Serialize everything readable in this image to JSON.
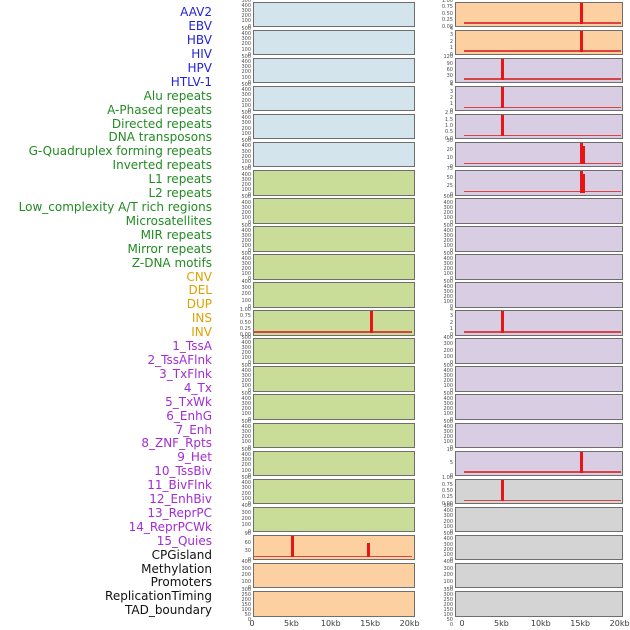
{
  "figure": {
    "x_axis_ticks": [
      "0",
      "5kb",
      "10kb",
      "15kb",
      "20kb"
    ]
  },
  "palette": {
    "signal_color": "#e81515",
    "panel_border": "#6e6e6e",
    "tick_text": "#4d4d4d",
    "groups": {
      "virus": {
        "label_color": "#2222dd",
        "fill": "#d3e4ed"
      },
      "repeat": {
        "label_color": "#228b22",
        "fill": "#c9dd99"
      },
      "sv": {
        "label_color": "#e0a000",
        "fill": "#fcd0a0"
      },
      "chromatin_state": {
        "label_color": "#a32cd4",
        "fill": "#d8cde3"
      },
      "other": {
        "label_color": "#111111",
        "fill": "#d4d4d4"
      }
    }
  },
  "chart_data": {
    "type": "line",
    "layout": "small multiples: 2 panel columns x 22 rows; features 1-22 in left column, features 23-44 in right column; red signal trace flat at 0 with sharp spikes",
    "x": {
      "ticks": [
        "0",
        "5kb",
        "10kb",
        "15kb",
        "20kb"
      ],
      "range_kb": [
        0,
        20
      ]
    },
    "features": [
      {
        "name": "AAV2",
        "group": "virus",
        "yticks": [
          "500",
          "400",
          "300",
          "200",
          "100",
          "0"
        ],
        "spikes": []
      },
      {
        "name": "EBV",
        "group": "virus",
        "yticks": [
          "500",
          "400",
          "300",
          "200",
          "100",
          "0"
        ],
        "spikes": []
      },
      {
        "name": "HBV",
        "group": "virus",
        "yticks": [
          "500",
          "400",
          "300",
          "200",
          "100",
          "0"
        ],
        "spikes": []
      },
      {
        "name": "HIV",
        "group": "virus",
        "yticks": [
          "500",
          "400",
          "300",
          "200",
          "100",
          "0"
        ],
        "spikes": []
      },
      {
        "name": "HPV",
        "group": "virus",
        "yticks": [
          "500",
          "400",
          "300",
          "200",
          "100",
          "0"
        ],
        "spikes": []
      },
      {
        "name": "HTLV-1",
        "group": "virus",
        "yticks": [
          "500",
          "400",
          "300",
          "200",
          "100",
          "0"
        ],
        "spikes": []
      },
      {
        "name": "Alu repeats",
        "group": "repeat",
        "yticks": [
          "500",
          "400",
          "300",
          "200",
          "100",
          "0"
        ],
        "spikes": []
      },
      {
        "name": "A-Phased repeats",
        "group": "repeat",
        "yticks": [
          "500",
          "400",
          "300",
          "200",
          "100",
          "0"
        ],
        "spikes": []
      },
      {
        "name": "Directed repeats",
        "group": "repeat",
        "yticks": [
          "500",
          "400",
          "300",
          "200",
          "100",
          "0"
        ],
        "spikes": []
      },
      {
        "name": "DNA transposons",
        "group": "repeat",
        "yticks": [
          "500",
          "400",
          "300",
          "200",
          "100",
          "0"
        ],
        "spikes": []
      },
      {
        "name": "G-Quadruplex forming repeats",
        "group": "repeat",
        "yticks": [
          "400",
          "300",
          "200",
          "100",
          "0"
        ],
        "spikes": []
      },
      {
        "name": "Inverted repeats",
        "group": "repeat",
        "yticks": [
          "1.00",
          "0.75",
          "0.50",
          "0.25",
          "0.00"
        ],
        "spikes": [
          {
            "x_kb": 15,
            "height_frac": 1.0
          }
        ]
      },
      {
        "name": "L1 repeats",
        "group": "repeat",
        "yticks": [
          "500",
          "400",
          "300",
          "200",
          "100",
          "0"
        ],
        "spikes": []
      },
      {
        "name": "L2 repeats",
        "group": "repeat",
        "yticks": [
          "500",
          "400",
          "300",
          "200",
          "100",
          "0"
        ],
        "spikes": []
      },
      {
        "name": "Low_complexity A/T rich regions",
        "group": "repeat",
        "yticks": [
          "500",
          "400",
          "300",
          "200",
          "100",
          "0"
        ],
        "spikes": []
      },
      {
        "name": "Microsatellites",
        "group": "repeat",
        "yticks": [
          "500",
          "400",
          "300",
          "200",
          "100",
          "0"
        ],
        "spikes": []
      },
      {
        "name": "MIR repeats",
        "group": "repeat",
        "yticks": [
          "500",
          "400",
          "300",
          "200",
          "100",
          "0"
        ],
        "spikes": []
      },
      {
        "name": "Mirror repeats",
        "group": "repeat",
        "yticks": [
          "500",
          "400",
          "300",
          "200",
          "100",
          "0"
        ],
        "spikes": []
      },
      {
        "name": "Z-DNA motifs",
        "group": "repeat",
        "yticks": [
          "400",
          "300",
          "200",
          "100",
          "0"
        ],
        "spikes": []
      },
      {
        "name": "CNV",
        "group": "sv",
        "yticks": [
          "90",
          "60",
          "30",
          "0"
        ],
        "spikes": [
          {
            "x_kb": 5,
            "height_frac": 1.0
          },
          {
            "x_kb": 14.7,
            "height_frac": 0.65
          }
        ]
      },
      {
        "name": "DEL",
        "group": "sv",
        "yticks": [
          "400",
          "300",
          "200",
          "100",
          "0"
        ],
        "spikes": []
      },
      {
        "name": "DUP",
        "group": "sv",
        "yticks": [
          "300",
          "250",
          "200",
          "150",
          "100",
          "50",
          "0"
        ],
        "spikes": []
      },
      {
        "name": "INS",
        "group": "sv",
        "yticks": [
          "1.00",
          "0.75",
          "0.50",
          "0.25",
          "0.00"
        ],
        "spikes": [
          {
            "x_kb": 15,
            "height_frac": 1.0
          }
        ]
      },
      {
        "name": "INV",
        "group": "sv",
        "yticks": [
          "4",
          "3",
          "2",
          "1",
          "0"
        ],
        "spikes": [
          {
            "x_kb": 15,
            "height_frac": 1.0
          }
        ]
      },
      {
        "name": "1_TssA",
        "group": "chromatin_state",
        "yticks": [
          "120",
          "90",
          "60",
          "30",
          "0"
        ],
        "spikes": [
          {
            "x_kb": 5,
            "height_frac": 1.0
          }
        ]
      },
      {
        "name": "2_TssAFlnk",
        "group": "chromatin_state",
        "yticks": [
          "4",
          "3",
          "2",
          "1",
          "0"
        ],
        "spikes": [
          {
            "x_kb": 5,
            "height_frac": 1.0
          }
        ]
      },
      {
        "name": "3_TxFlnk",
        "group": "chromatin_state",
        "yticks": [
          "2.0",
          "1.5",
          "1.0",
          "0.5",
          "0.0"
        ],
        "spikes": [
          {
            "x_kb": 5,
            "height_frac": 1.0
          }
        ]
      },
      {
        "name": "4_Tx",
        "group": "chromatin_state",
        "yticks": [
          "30",
          "20",
          "10",
          "0"
        ],
        "spikes": [
          {
            "x_kb": 15,
            "height_frac": 1.0
          },
          {
            "x_kb": 15.4,
            "height_frac": 0.85,
            "width": 2
          }
        ]
      },
      {
        "name": "5_TxWk",
        "group": "chromatin_state",
        "yticks": [
          "75",
          "50",
          "25",
          "0"
        ],
        "spikes": [
          {
            "x_kb": 15,
            "height_frac": 1.0
          },
          {
            "x_kb": 15.4,
            "height_frac": 0.85,
            "width": 2
          }
        ]
      },
      {
        "name": "6_EnhG",
        "group": "chromatin_state",
        "yticks": [
          "500",
          "400",
          "300",
          "200",
          "100",
          "0"
        ],
        "spikes": []
      },
      {
        "name": "7_Enh",
        "group": "chromatin_state",
        "yticks": [
          "500",
          "400",
          "300",
          "200",
          "100",
          "0"
        ],
        "spikes": []
      },
      {
        "name": "8_ZNF_Rpts",
        "group": "chromatin_state",
        "yticks": [
          "500",
          "400",
          "300",
          "200",
          "100",
          "0"
        ],
        "spikes": []
      },
      {
        "name": "9_Het",
        "group": "chromatin_state",
        "yticks": [
          "500",
          "400",
          "300",
          "200",
          "100",
          "0"
        ],
        "spikes": []
      },
      {
        "name": "10_TssBiv",
        "group": "chromatin_state",
        "yticks": [
          "4",
          "3",
          "2",
          "1",
          "0"
        ],
        "spikes": [
          {
            "x_kb": 5,
            "height_frac": 1.0
          }
        ]
      },
      {
        "name": "11_BivFlnk",
        "group": "chromatin_state",
        "yticks": [
          "400",
          "300",
          "200",
          "100",
          "0"
        ],
        "spikes": []
      },
      {
        "name": "12_EnhBiv",
        "group": "chromatin_state",
        "yticks": [
          "500",
          "400",
          "300",
          "200",
          "100",
          "0"
        ],
        "spikes": []
      },
      {
        "name": "13_ReprPC",
        "group": "chromatin_state",
        "yticks": [
          "500",
          "400",
          "300",
          "200",
          "100",
          "0"
        ],
        "spikes": []
      },
      {
        "name": "14_ReprPCWk",
        "group": "chromatin_state",
        "yticks": [
          "500",
          "400",
          "300",
          "200",
          "100",
          "0"
        ],
        "spikes": []
      },
      {
        "name": "15_Quies",
        "group": "chromatin_state",
        "yticks": [
          "10",
          "5",
          "0"
        ],
        "spikes": [
          {
            "x_kb": 15,
            "height_frac": 1.0
          }
        ]
      },
      {
        "name": "CPGisland",
        "group": "other",
        "yticks": [
          "1.00",
          "0.75",
          "0.50",
          "0.25",
          "0.00"
        ],
        "spikes": [
          {
            "x_kb": 5,
            "height_frac": 1.0
          }
        ]
      },
      {
        "name": "Methylation",
        "group": "other",
        "yticks": [
          "500",
          "400",
          "300",
          "200",
          "100",
          "0"
        ],
        "spikes": []
      },
      {
        "name": "Promoters",
        "group": "other",
        "yticks": [
          "500",
          "400",
          "300",
          "200",
          "100",
          "0"
        ],
        "spikes": []
      },
      {
        "name": "ReplicationTiming",
        "group": "other",
        "yticks": [
          "400",
          "300",
          "200",
          "100",
          "0"
        ],
        "spikes": []
      },
      {
        "name": "TAD_boundary",
        "group": "other",
        "yticks": [
          "350",
          "300",
          "250",
          "200",
          "150",
          "100",
          "50",
          "0"
        ],
        "spikes": []
      }
    ]
  }
}
